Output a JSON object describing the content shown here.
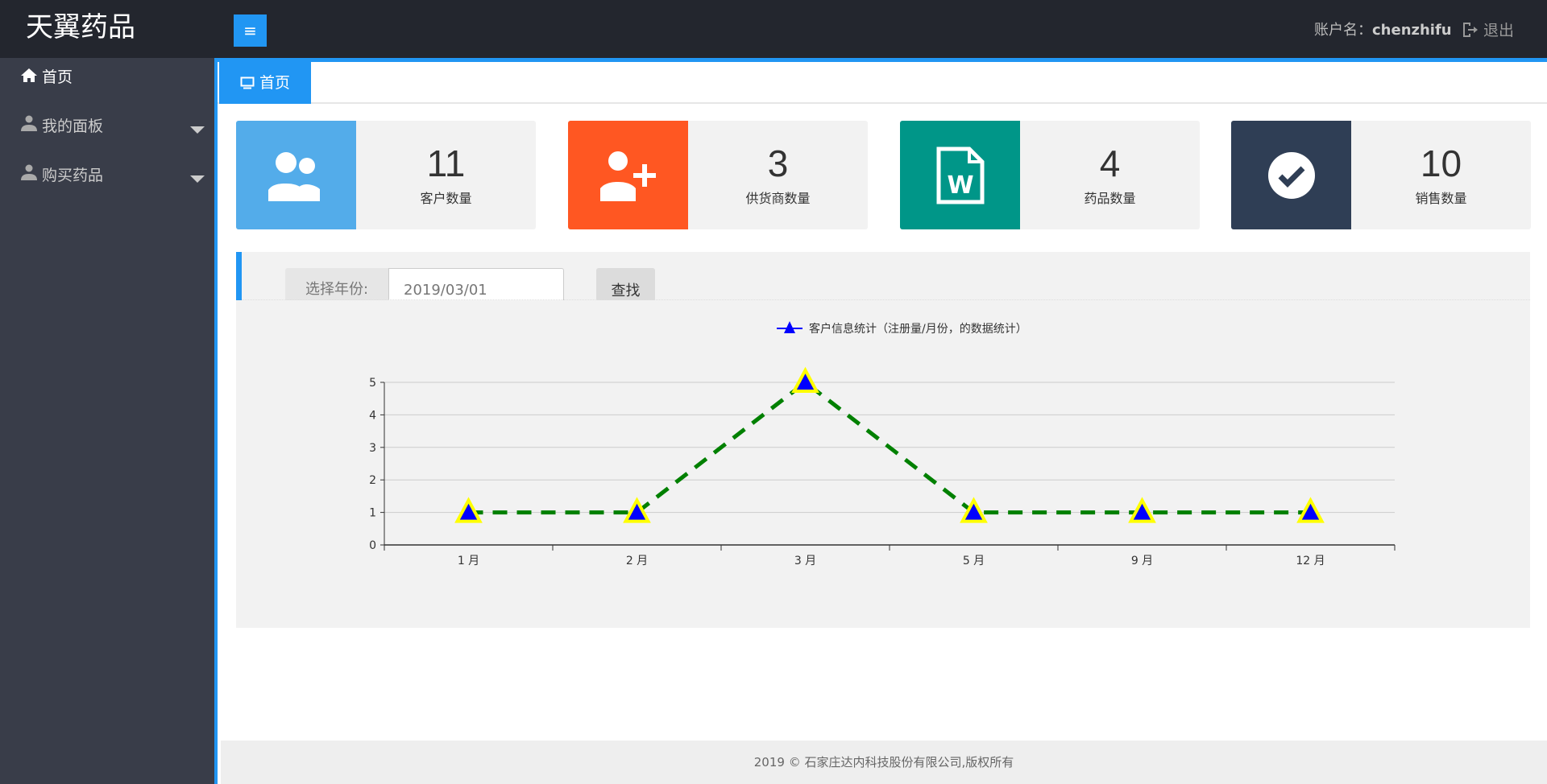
{
  "header": {
    "logo": "天翼药品",
    "account_label": "账户名：",
    "username": "chenzhifu",
    "logout": "退出"
  },
  "sidebar": {
    "items": [
      {
        "label": "首页",
        "icon": "home-icon"
      },
      {
        "label": "我的面板",
        "icon": "user-icon"
      },
      {
        "label": "购买药品",
        "icon": "user-icon"
      }
    ]
  },
  "tabs": [
    {
      "label": "首页",
      "icon": "monitor-icon"
    }
  ],
  "cards": [
    {
      "value": "11",
      "label": "客户数量",
      "color": "#53acea",
      "icon": "users-icon"
    },
    {
      "value": "3",
      "label": "供货商数量",
      "color": "#ff5722",
      "icon": "add-user-icon"
    },
    {
      "value": "4",
      "label": "药品数量",
      "color": "#009688",
      "icon": "word-document-icon"
    },
    {
      "value": "10",
      "label": "销售数量",
      "color": "#2f3e55",
      "icon": "check-circle-icon"
    }
  ],
  "filter": {
    "label": "选择年份:",
    "value": "2019/03/01",
    "button": "查找"
  },
  "chart_data": {
    "type": "line",
    "categories": [
      "1 月",
      "2 月",
      "3 月",
      "5 月",
      "9 月",
      "12 月"
    ],
    "series": [
      {
        "name": "客户信息统计（注册量/月份，的数据统计）",
        "values": [
          1,
          1,
          5,
          1,
          1,
          1
        ]
      }
    ],
    "ylim": [
      0,
      5
    ],
    "yticks": [
      "0",
      "1",
      "2",
      "3",
      "4",
      "5"
    ],
    "grid": true,
    "legend": "top-center",
    "line_color": "#008000",
    "line_style": "dashed",
    "marker": "triangle",
    "marker_fill": "#0000ff",
    "marker_stroke": "#ffff00"
  },
  "footer": {
    "text": "2019 © 石家庄达内科技股份有限公司,版权所有"
  }
}
